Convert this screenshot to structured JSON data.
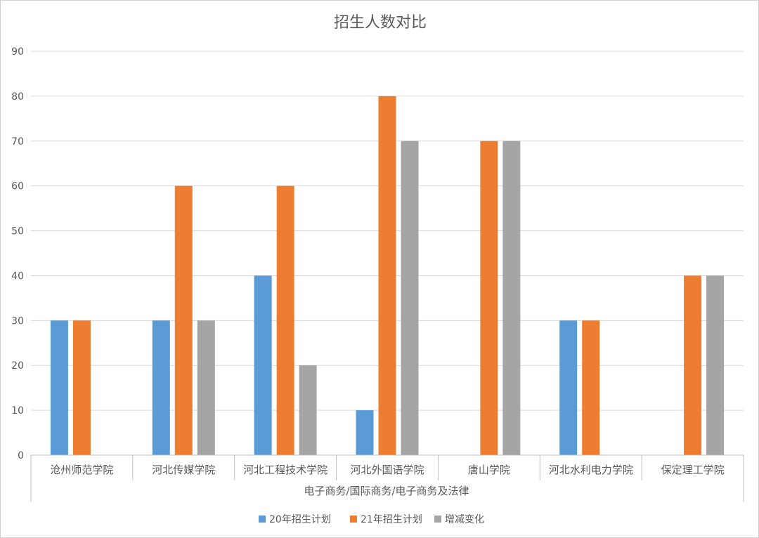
{
  "chart_data": {
    "type": "bar",
    "title": "招生人数对比",
    "group_label": "电子商务/国际商务/电子商务及法律",
    "categories": [
      "沧州师范学院",
      "河北传媒学院",
      "河北工程技术学院",
      "河北外国语学院",
      "唐山学院",
      "河北水利电力学院",
      "保定理工学院"
    ],
    "series": [
      {
        "name": "20年招生计划",
        "color": "#5b9bd5",
        "values": [
          30,
          30,
          40,
          10,
          null,
          30,
          null
        ]
      },
      {
        "name": "21年招生计划",
        "color": "#ed7d31",
        "values": [
          30,
          60,
          60,
          80,
          70,
          30,
          40
        ]
      },
      {
        "name": "增减变化",
        "color": "#a5a5a5",
        "values": [
          null,
          30,
          20,
          70,
          70,
          null,
          40
        ]
      }
    ],
    "ylim": [
      0,
      90
    ],
    "yticks": [
      0,
      10,
      20,
      30,
      40,
      50,
      60,
      70,
      80,
      90
    ],
    "grid": true,
    "legend": "bottom"
  }
}
